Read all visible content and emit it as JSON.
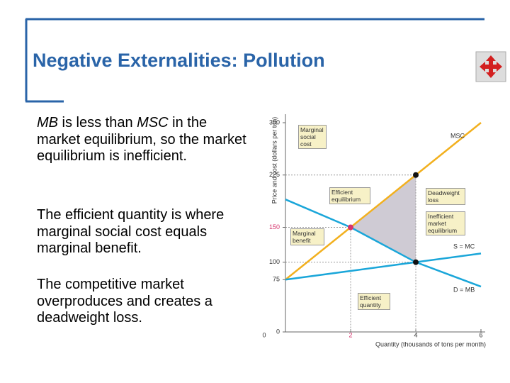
{
  "header": {
    "title": "Negative Externalities: Pollution"
  },
  "bullets": [
    [
      "MB",
      " is less than ",
      "MSC",
      " in the market equilibrium, so the market equilibrium is inefficient."
    ],
    [
      "The efficient quantity is where marginal social cost equals marginal benefit."
    ],
    [
      "The competitive market overproduces and creates a deadweight loss."
    ]
  ],
  "chart_data": {
    "type": "line",
    "x_label": "Quantity (thousands of tons per month)",
    "y_label": "Price and cost (dollars per ton)",
    "x": [
      0,
      2,
      4,
      6
    ],
    "series": [
      {
        "name": "MSC",
        "color": "#f2b01e",
        "values": [
          75,
          150,
          225,
          300
        ]
      },
      {
        "name": "S = MC",
        "color": "#1aa6d9",
        "values": [
          75,
          87.5,
          100,
          112.5
        ]
      },
      {
        "name": "D = MB",
        "color": "#1aa6d9",
        "values": [
          190,
          150,
          100,
          65
        ]
      }
    ],
    "xlim": [
      0,
      6
    ],
    "ylim": [
      0,
      300
    ],
    "xticks": [
      0,
      2,
      4,
      6
    ],
    "yticks": [
      0,
      75,
      100,
      150,
      225,
      300
    ],
    "annotations": [
      "Marginal social cost",
      "Efficient equilibrium",
      "Deadweight loss",
      "Inefficient market equilibrium",
      "Marginal benefit",
      "Efficient quantity"
    ]
  }
}
